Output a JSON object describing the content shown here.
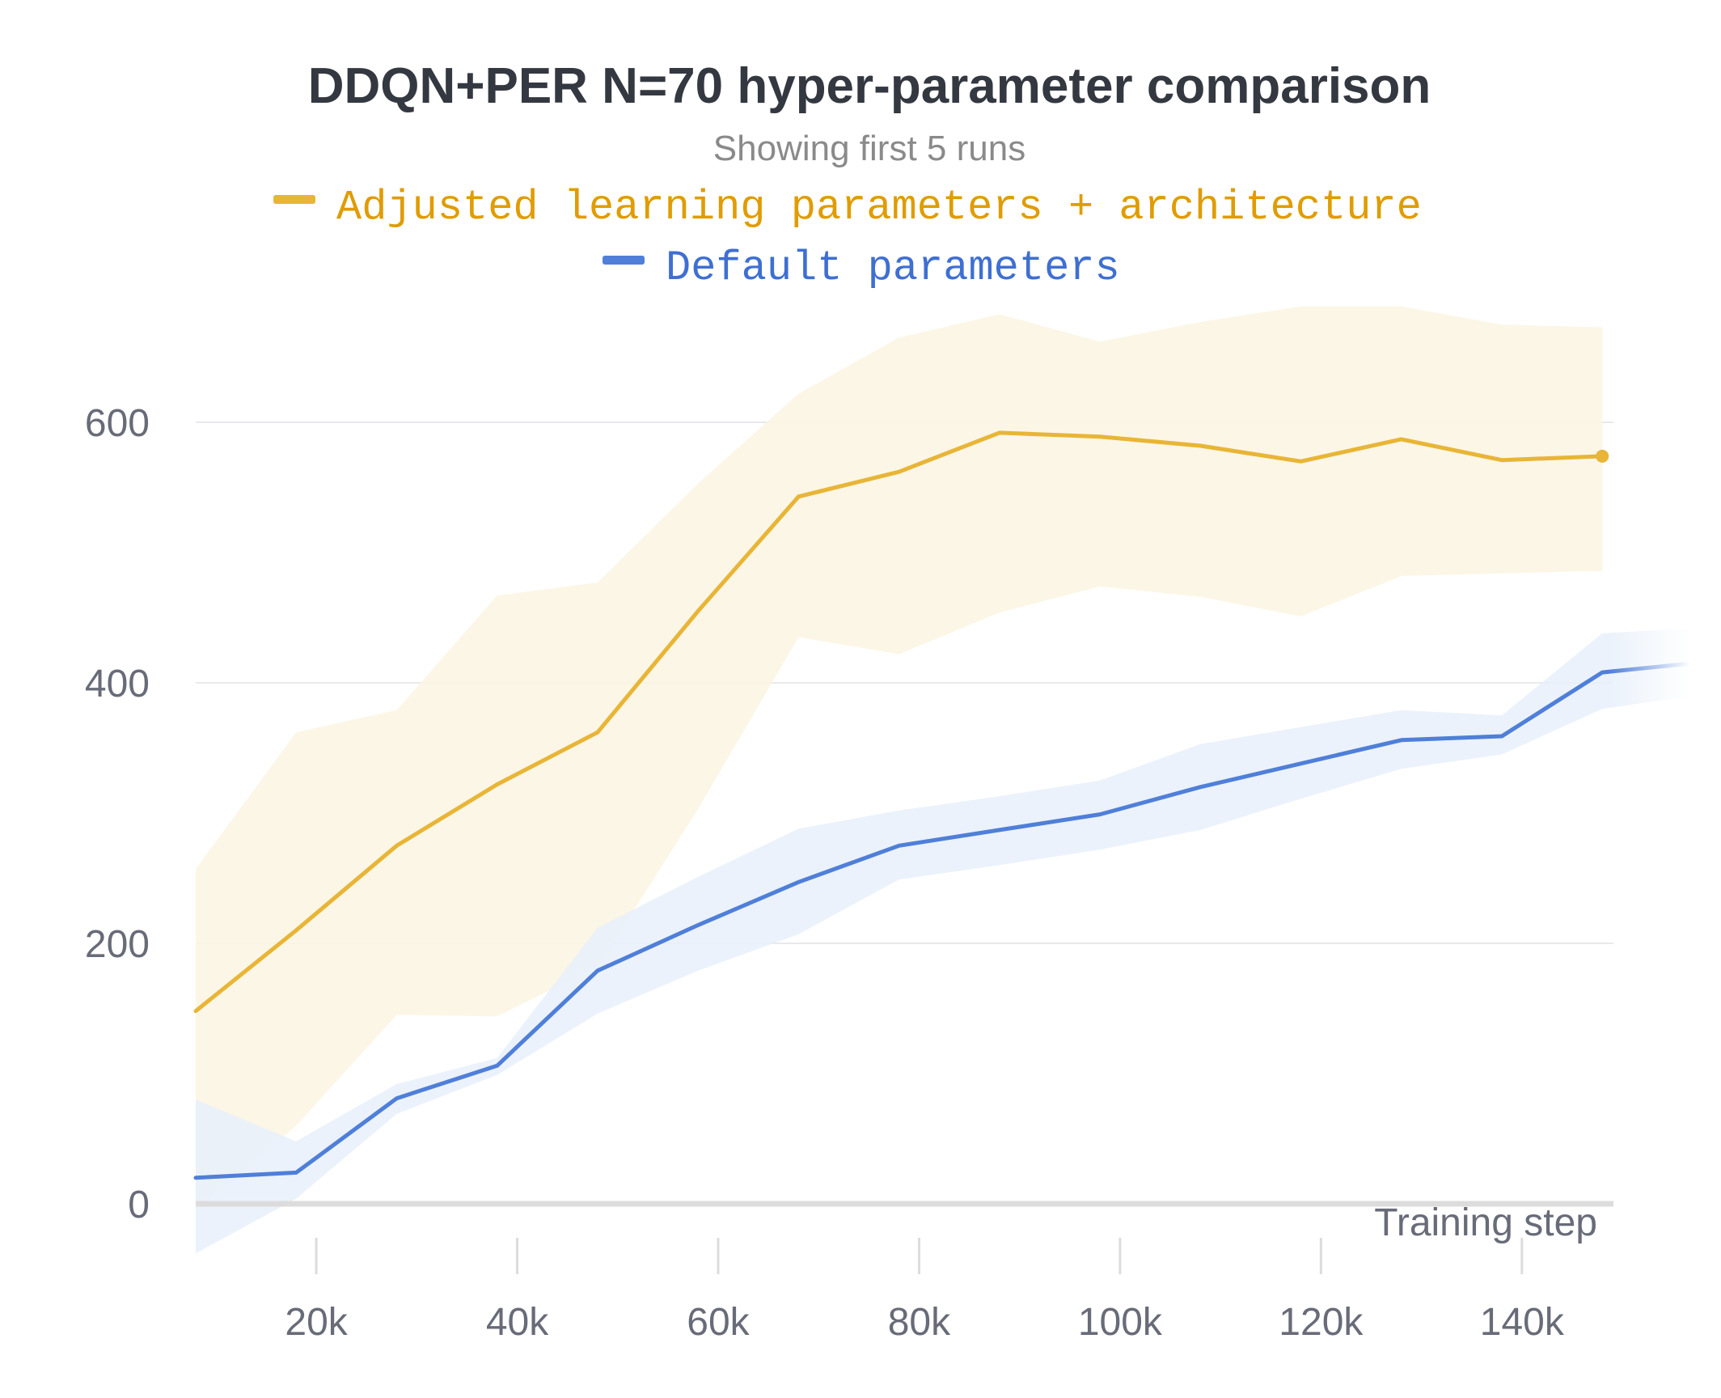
{
  "chart_data": {
    "type": "line",
    "title": "DDQN+PER N=70 hyper-parameter comparison",
    "subtitle": "Showing first 5 runs",
    "xlabel": "Training step",
    "ylabel": "",
    "xlim": [
      8000,
      157000
    ],
    "ylim": [
      -40,
      680
    ],
    "grid": true,
    "legend_placement": "top-center",
    "x_ticks": [
      {
        "value": 20000,
        "label": "20k"
      },
      {
        "value": 40000,
        "label": "40k"
      },
      {
        "value": 60000,
        "label": "60k"
      },
      {
        "value": 80000,
        "label": "80k"
      },
      {
        "value": 100000,
        "label": "100k"
      },
      {
        "value": 120000,
        "label": "120k"
      },
      {
        "value": 140000,
        "label": "140k"
      }
    ],
    "y_ticks": [
      {
        "value": 0,
        "label": "0"
      },
      {
        "value": 200,
        "label": "200"
      },
      {
        "value": 400,
        "label": "400"
      },
      {
        "value": 600,
        "label": "600"
      }
    ],
    "series": [
      {
        "name": "Adjusted learning parameters + architecture",
        "color": "#e8b536",
        "label_color": "#e09c00",
        "band_color": "#fbf4e2",
        "x": [
          8000,
          18000,
          28000,
          38000,
          48000,
          58000,
          68000,
          78000,
          88000,
          98000,
          108000,
          118000,
          128000,
          138000,
          148000
        ],
        "y": [
          148,
          210,
          275,
          322,
          362,
          455,
          543,
          562,
          592,
          589,
          582,
          570,
          587,
          571,
          574
        ],
        "upper": [
          257,
          362,
          379,
          467,
          477,
          553,
          622,
          665,
          683,
          662,
          677,
          689,
          689,
          675,
          673
        ],
        "lower": [
          -5,
          60,
          145,
          144,
          182,
          303,
          435,
          422,
          454,
          474,
          466,
          451,
          482,
          484,
          486
        ]
      },
      {
        "name": "Default parameters",
        "color": "#4f7fd9",
        "label_color": "#3f6fd2",
        "band_color": "#e8f0fa",
        "x": [
          8000,
          18000,
          28000,
          38000,
          48000,
          58000,
          68000,
          78000,
          88000,
          98000,
          108000,
          118000,
          128000,
          138000,
          148000,
          157000
        ],
        "y": [
          20,
          24,
          81,
          106,
          179,
          214,
          247,
          275,
          287,
          299,
          320,
          338,
          356,
          359,
          408,
          415
        ],
        "upper": [
          80,
          48,
          92,
          112,
          212,
          251,
          288,
          302,
          313,
          325,
          353,
          366,
          379,
          375,
          438,
          442
        ],
        "lower": [
          -38,
          4,
          69,
          99,
          146,
          179,
          207,
          249,
          260,
          272,
          287,
          311,
          334,
          345,
          380,
          390
        ]
      }
    ]
  }
}
